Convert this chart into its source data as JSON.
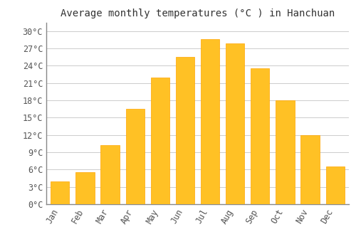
{
  "title": "Average monthly temperatures (°C ) in Hanchuan",
  "months": [
    "Jan",
    "Feb",
    "Mar",
    "Apr",
    "May",
    "Jun",
    "Jul",
    "Aug",
    "Sep",
    "Oct",
    "Nov",
    "Dec"
  ],
  "values": [
    4.0,
    5.5,
    10.2,
    16.5,
    22.0,
    25.5,
    28.6,
    27.9,
    23.5,
    18.0,
    12.0,
    6.5
  ],
  "bar_color": "#FFC125",
  "bar_edge_color": "#FFA500",
  "background_color": "#FFFFFF",
  "grid_color": "#CCCCCC",
  "yticks": [
    0,
    3,
    6,
    9,
    12,
    15,
    18,
    21,
    24,
    27,
    30
  ],
  "ylim": [
    0,
    31.5
  ],
  "title_fontsize": 10,
  "tick_fontsize": 8.5,
  "font_family": "monospace"
}
